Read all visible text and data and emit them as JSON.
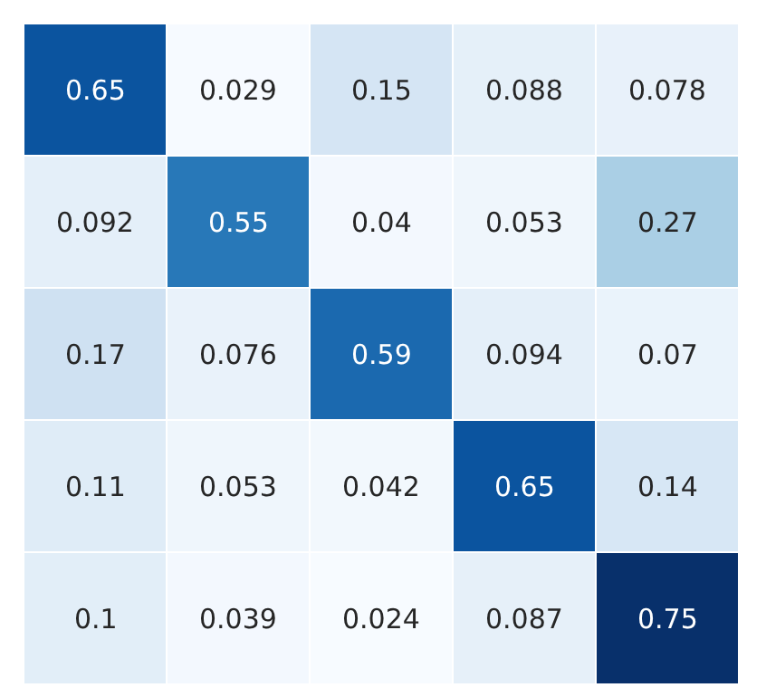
{
  "chart_data": {
    "type": "heatmap",
    "categories": [
      null,
      null,
      null,
      null,
      null
    ],
    "y_categories": [
      null,
      null,
      null,
      null,
      null
    ],
    "cells": [
      [
        0.65,
        0.029,
        0.15,
        0.088,
        0.078
      ],
      [
        0.092,
        0.55,
        0.04,
        0.053,
        0.27
      ],
      [
        0.17,
        0.076,
        0.59,
        0.094,
        0.07
      ],
      [
        0.11,
        0.053,
        0.042,
        0.65,
        0.14
      ],
      [
        0.1,
        0.039,
        0.024,
        0.087,
        0.75
      ]
    ],
    "data_labels": true
  }
}
